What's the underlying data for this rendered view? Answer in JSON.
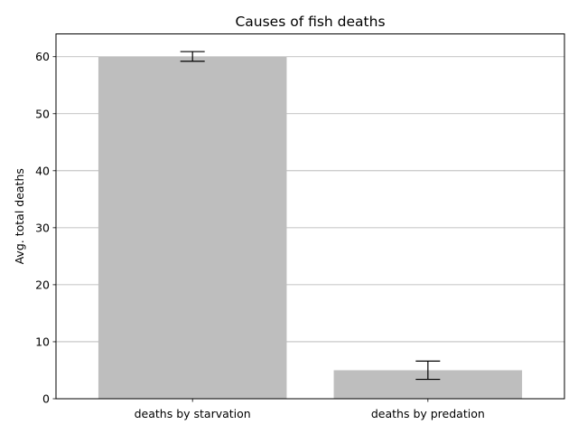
{
  "chart_data": {
    "type": "bar",
    "title": "Causes of fish deaths",
    "xlabel": "",
    "ylabel": "Avg. total deaths",
    "categories": [
      "deaths by starvation",
      "deaths by predation"
    ],
    "values": [
      60,
      5
    ],
    "error_low": [
      59.2,
      3.4
    ],
    "error_high": [
      60.9,
      6.6
    ],
    "ylim": [
      0,
      64
    ],
    "yticks": [
      0,
      10,
      20,
      30,
      40,
      50,
      60
    ],
    "grid": "y",
    "bar_color": "#bebebe",
    "grid_color": "#b0b0b0",
    "axis_color": "#000000"
  }
}
